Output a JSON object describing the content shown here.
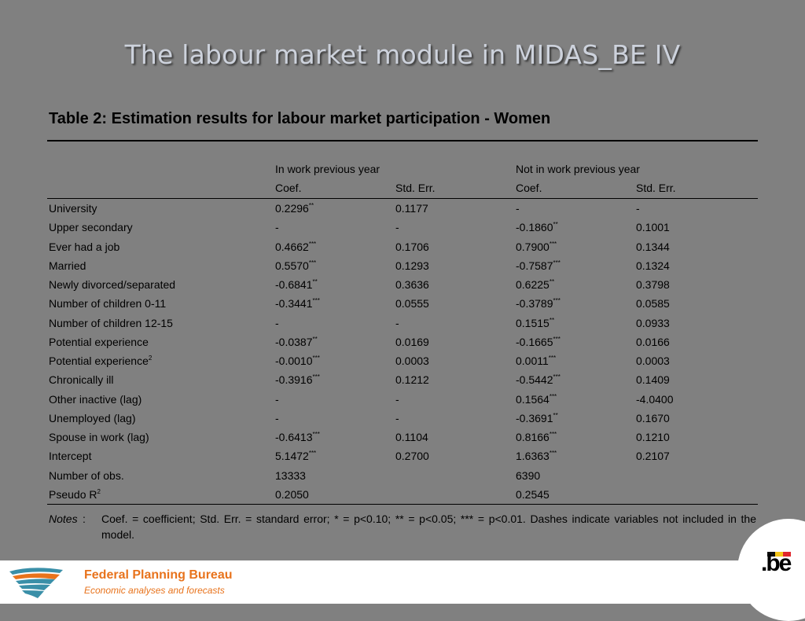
{
  "slide": {
    "title": "The labour market module in MIDAS_BE IV"
  },
  "table": {
    "caption": "Table 2: Estimation results for labour market participation - Women",
    "groups": [
      "In work previous year",
      "Not in work previous year"
    ],
    "subheaders": [
      "Coef.",
      "Std. Err.",
      "Coef.",
      "Std. Err."
    ],
    "rows": [
      {
        "label": "University",
        "label_sup": "",
        "c1": "0.2296",
        "s1": "**",
        "e1": "0.1177",
        "c2": "-",
        "s2": "",
        "e2": "-"
      },
      {
        "label": "Upper secondary",
        "label_sup": "",
        "c1": "-",
        "s1": "",
        "e1": "-",
        "c2": "-0.1860",
        "s2": "**",
        "e2": "0.1001"
      },
      {
        "label": "Ever had a job",
        "label_sup": "",
        "c1": "0.4662",
        "s1": "***",
        "e1": "0.1706",
        "c2": "0.7900",
        "s2": "***",
        "e2": "0.1344"
      },
      {
        "label": "Married",
        "label_sup": "",
        "c1": "0.5570",
        "s1": "***",
        "e1": "0.1293",
        "c2": "-0.7587",
        "s2": "***",
        "e2": "0.1324"
      },
      {
        "label": "Newly divorced/separated",
        "label_sup": "",
        "c1": "-0.6841",
        "s1": "**",
        "e1": "0.3636",
        "c2": "0.6225",
        "s2": "**",
        "e2": "0.3798"
      },
      {
        "label": "Number of children 0-11",
        "label_sup": "",
        "c1": "-0.3441",
        "s1": "***",
        "e1": "0.0555",
        "c2": "-0.3789",
        "s2": "***",
        "e2": "0.0585"
      },
      {
        "label": "Number of children 12-15",
        "label_sup": "",
        "c1": "-",
        "s1": "",
        "e1": "-",
        "c2": "0.1515",
        "s2": "**",
        "e2": "0.0933"
      },
      {
        "label": "Potential experience",
        "label_sup": "",
        "c1": "-0.0387",
        "s1": "**",
        "e1": "0.0169",
        "c2": "-0.1665",
        "s2": "***",
        "e2": "0.0166"
      },
      {
        "label": "Potential experience",
        "label_sup": "2",
        "c1": "-0.0010",
        "s1": "***",
        "e1": "0.0003",
        "c2": "0.0011",
        "s2": "***",
        "e2": "0.0003"
      },
      {
        "label": "Chronically ill",
        "label_sup": "",
        "c1": "-0.3916",
        "s1": "***",
        "e1": "0.1212",
        "c2": "-0.5442",
        "s2": "***",
        "e2": "0.1409"
      },
      {
        "label": "Other inactive (lag)",
        "label_sup": "",
        "c1": "-",
        "s1": "",
        "e1": "-",
        "c2": "0.1564",
        "s2": "***",
        "e2": "-4.0400"
      },
      {
        "label": "Unemployed (lag)",
        "label_sup": "",
        "c1": "-",
        "s1": "",
        "e1": "-",
        "c2": "-0.3691",
        "s2": "**",
        "e2": "0.1670"
      },
      {
        "label": "Spouse in work (lag)",
        "label_sup": "",
        "c1": "-0.6413",
        "s1": "***",
        "e1": "0.1104",
        "c2": "0.8166",
        "s2": "***",
        "e2": "0.1210"
      },
      {
        "label": "Intercept",
        "label_sup": "",
        "c1": "5.1472",
        "s1": "***",
        "e1": "0.2700",
        "c2": "1.6363",
        "s2": "***",
        "e2": "0.2107"
      },
      {
        "label": "Number of obs.",
        "label_sup": "",
        "c1": "13333",
        "s1": "",
        "e1": "",
        "c2": "6390",
        "s2": "",
        "e2": ""
      },
      {
        "label": "Pseudo R",
        "label_sup": "2",
        "c1": "0.2050",
        "s1": "",
        "e1": "",
        "c2": "0.2545",
        "s2": "",
        "e2": ""
      }
    ],
    "notes_label": "Notes",
    "notes_colon": ":",
    "notes_text": "Coef. = coefficient; Std. Err. = standard error; * = p<0.10; ** = p<0.05; *** = p<0.01. Dashes indicate variables not included in the model."
  },
  "footer": {
    "org_name": "Federal Planning Bureau",
    "org_tagline": "Economic analyses and forecasts",
    "be_logo_text": ".be",
    "colors": {
      "accent": "#e8731c",
      "logo_teal": "#3a8fa8"
    }
  }
}
